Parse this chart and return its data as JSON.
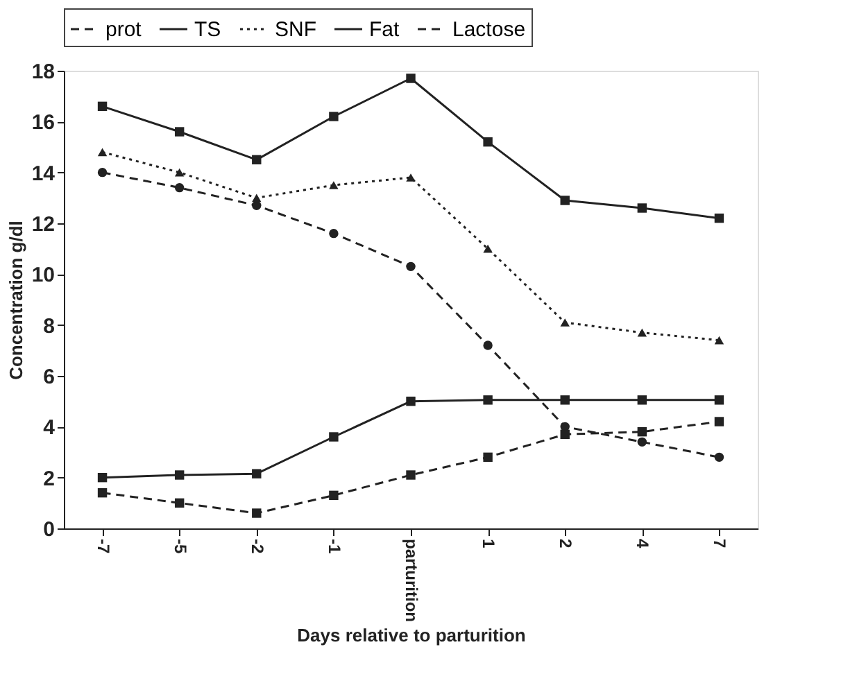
{
  "chart_data": {
    "type": "line",
    "xlabel": "Days relative to parturition",
    "ylabel": "Concentration  g/dl",
    "categories": [
      "-7",
      "-5",
      "-2",
      "-1",
      "parturition",
      "1",
      "2",
      "4",
      "7"
    ],
    "ylim": [
      0,
      18
    ],
    "yticks": [
      0,
      2,
      4,
      6,
      8,
      10,
      12,
      14,
      16,
      18
    ],
    "grid": false,
    "legend": "top",
    "series": [
      {
        "name": "prot",
        "color": "#222222",
        "marker": "circle",
        "line_style": "dashed",
        "values": [
          14.0,
          13.4,
          12.7,
          11.6,
          10.3,
          7.2,
          4.0,
          3.4,
          2.8
        ]
      },
      {
        "name": "TS",
        "color": "#222222",
        "marker": "square",
        "line_style": "solid",
        "values": [
          16.6,
          15.6,
          14.5,
          16.2,
          17.7,
          15.2,
          12.9,
          12.6,
          12.2
        ]
      },
      {
        "name": "SNF",
        "color": "#222222",
        "marker": "triangle",
        "line_style": "dotted",
        "values": [
          14.8,
          14.0,
          13.0,
          13.5,
          13.8,
          11.0,
          8.1,
          7.7,
          7.4
        ]
      },
      {
        "name": "Fat",
        "color": "#222222",
        "marker": "square",
        "line_style": "solid",
        "values": [
          2.0,
          2.1,
          2.15,
          3.6,
          5.0,
          5.05,
          5.05,
          5.05,
          5.05
        ]
      },
      {
        "name": "Lactose",
        "color": "#222222",
        "marker": "square",
        "line_style": "dashed",
        "values": [
          1.4,
          1.0,
          0.6,
          1.3,
          2.1,
          2.8,
          3.7,
          3.8,
          4.2
        ]
      }
    ]
  }
}
